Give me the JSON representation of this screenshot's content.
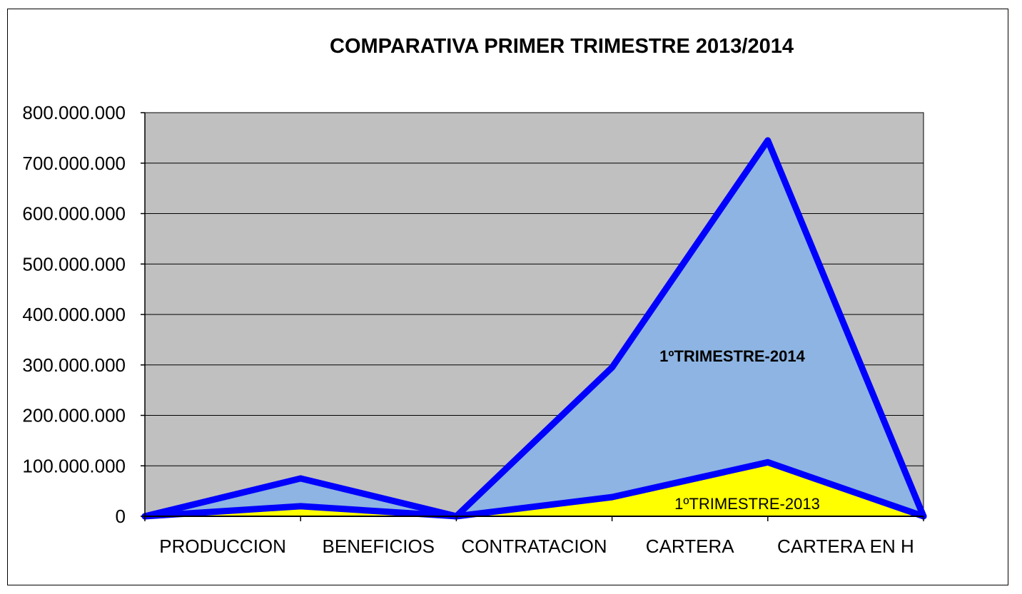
{
  "chart_data": {
    "type": "area",
    "title": "COMPARATIVA PRIMER TRIMESTRE 2013/2014",
    "xlabel": "",
    "ylabel": "",
    "categories": [
      "",
      "PRODUCCION",
      "BENEFICIOS",
      "CONTRATACION",
      "CARTERA",
      "CARTERA EN H"
    ],
    "ylim": [
      0,
      800000000
    ],
    "yticks": [
      0,
      100000000,
      200000000,
      300000000,
      400000000,
      500000000,
      600000000,
      700000000,
      800000000
    ],
    "ytick_labels": [
      "0",
      "100.000.000",
      "200.000.000",
      "300.000.000",
      "400.000.000",
      "500.000.000",
      "600.000.000",
      "700.000.000",
      "800.000.000"
    ],
    "grid": true,
    "legend": "none",
    "series": [
      {
        "name": "1ºTRIMESTRE-2014",
        "values": [
          0,
          75000000,
          0,
          295000000,
          745000000,
          0
        ],
        "fill": "#8db4e2",
        "stroke": "#0000ff"
      },
      {
        "name": "1ºTRIMESTRE-2013",
        "values": [
          0,
          20000000,
          0,
          38000000,
          107000000,
          0
        ],
        "fill": "#ffff00",
        "stroke": "#0000ff"
      }
    ],
    "plot_background": "#c0c0c0",
    "gridline_color": "#000000",
    "outline_color": "#000000"
  }
}
